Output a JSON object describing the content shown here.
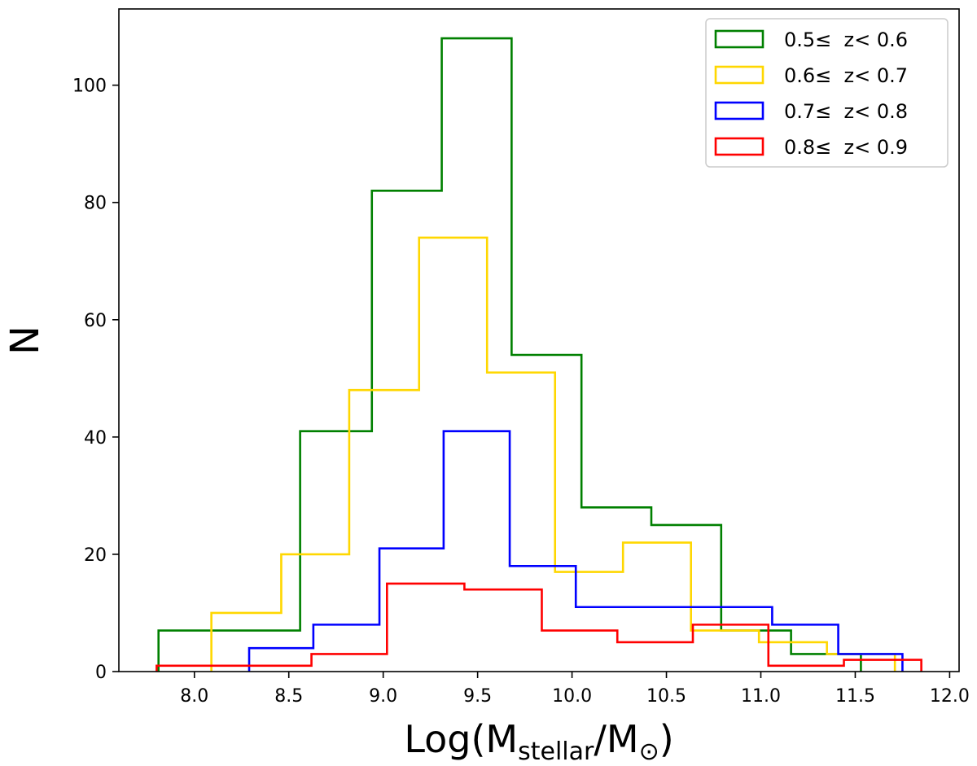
{
  "chart_data": {
    "type": "histogram",
    "xlabel": {
      "main": "Log(M",
      "sub1": "stellar",
      "mid": "/M",
      "sub2": "⊙",
      "end": ")"
    },
    "ylabel": "N",
    "xlim": [
      7.6,
      12.05
    ],
    "ylim": [
      0,
      113
    ],
    "xticks": [
      8.0,
      8.5,
      9.0,
      9.5,
      10.0,
      10.5,
      11.0,
      11.5,
      12.0
    ],
    "xtick_labels": [
      "8.0",
      "8.5",
      "9.0",
      "9.5",
      "10.0",
      "10.5",
      "11.0",
      "11.5",
      "12.0"
    ],
    "yticks": [
      0,
      20,
      40,
      60,
      80,
      100
    ],
    "ytick_labels": [
      "0",
      "20",
      "40",
      "60",
      "80",
      "100"
    ],
    "legend_position": "top-right",
    "series": [
      {
        "name": "0.5≤  z< 0.6",
        "color": "#008000",
        "edges": [
          7.81,
          8.56,
          8.94,
          9.31,
          9.68,
          10.05,
          10.42,
          10.79,
          11.16,
          11.53
        ],
        "counts": [
          7,
          41,
          82,
          108,
          54,
          28,
          25,
          7,
          3
        ]
      },
      {
        "name": "0.6≤  z< 0.7",
        "color": "#FFD700",
        "edges": [
          8.09,
          8.46,
          8.82,
          9.19,
          9.55,
          9.91,
          10.27,
          10.63,
          10.99,
          11.35,
          11.71
        ],
        "counts": [
          10,
          20,
          48,
          74,
          51,
          17,
          22,
          7,
          5,
          3
        ]
      },
      {
        "name": "0.7≤  z< 0.8",
        "color": "#0000FF",
        "edges": [
          8.29,
          8.63,
          8.98,
          9.32,
          9.67,
          10.02,
          10.37,
          10.71,
          11.06,
          11.41,
          11.75
        ],
        "counts": [
          4,
          8,
          21,
          41,
          18,
          11,
          11,
          11,
          8,
          3
        ]
      },
      {
        "name": "0.8≤  z< 0.9",
        "color": "#FF0000",
        "edges": [
          7.8,
          8.21,
          8.62,
          9.02,
          9.43,
          9.84,
          10.24,
          10.64,
          11.04,
          11.44,
          11.85
        ],
        "counts": [
          1,
          1,
          3,
          15,
          14,
          7,
          5,
          8,
          1,
          2
        ]
      }
    ]
  }
}
